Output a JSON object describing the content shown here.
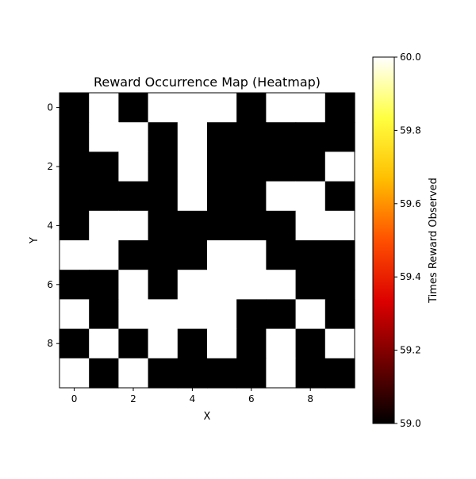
{
  "chart_data": {
    "type": "heatmap",
    "title": "Reward Occurrence Map (Heatmap)",
    "xlabel": "X",
    "ylabel": "Y",
    "x_ticks": [
      0,
      2,
      4,
      6,
      8
    ],
    "y_ticks": [
      0,
      2,
      4,
      6,
      8
    ],
    "x_tick_labels": [
      "0",
      "2",
      "4",
      "6",
      "8"
    ],
    "y_tick_labels": [
      "0",
      "2",
      "4",
      "6",
      "8"
    ],
    "colormap": "hot",
    "vmin": 59.0,
    "vmax": 60.0,
    "colorbar": {
      "label": "Times Reward Observed",
      "ticks": [
        59.0,
        59.2,
        59.4,
        59.6,
        59.8,
        60.0
      ],
      "tick_labels": [
        "59.0",
        "59.2",
        "59.4",
        "59.6",
        "59.8",
        "60.0"
      ],
      "colors": [
        "#000000",
        "#6e0000",
        "#dc0000",
        "#ff5000",
        "#ffbe00",
        "#ffff40",
        "#ffffff"
      ]
    },
    "values": [
      [
        59,
        60,
        59,
        60,
        60,
        60,
        59,
        60,
        60,
        59
      ],
      [
        59,
        60,
        60,
        59,
        60,
        59,
        59,
        59,
        59,
        59
      ],
      [
        59,
        59,
        60,
        59,
        60,
        59,
        59,
        59,
        59,
        60
      ],
      [
        59,
        59,
        59,
        59,
        60,
        59,
        59,
        60,
        60,
        59
      ],
      [
        59,
        60,
        60,
        59,
        59,
        59,
        59,
        59,
        60,
        60
      ],
      [
        60,
        60,
        59,
        59,
        59,
        60,
        60,
        59,
        59,
        59
      ],
      [
        59,
        59,
        60,
        59,
        60,
        60,
        60,
        60,
        59,
        59
      ],
      [
        60,
        59,
        60,
        60,
        60,
        60,
        59,
        59,
        60,
        59
      ],
      [
        59,
        60,
        59,
        60,
        59,
        60,
        59,
        60,
        59,
        60
      ],
      [
        60,
        59,
        60,
        59,
        59,
        59,
        59,
        60,
        59,
        59
      ]
    ]
  }
}
